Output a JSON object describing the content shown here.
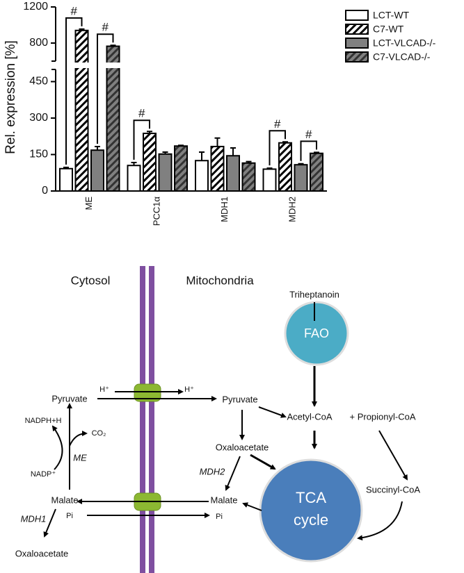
{
  "chart_data": {
    "type": "bar",
    "y_label": "Rel. expression [%]",
    "categories": [
      "ME",
      "PCC1α",
      "MDH1",
      "MDH2"
    ],
    "series": [
      {
        "name": "LCT-WT",
        "color": "#ffffff",
        "hatch": false,
        "values": [
          92,
          105,
          125,
          90
        ],
        "errors": [
          5,
          12,
          35,
          4
        ]
      },
      {
        "name": "C7-WT",
        "color": "#ffffff",
        "hatch": true,
        "values": [
          940,
          237,
          183,
          198
        ],
        "errors": [
          15,
          8,
          35,
          4
        ]
      },
      {
        "name": "LCT-VLCAD-/-",
        "color": "#808080",
        "hatch": false,
        "values": [
          168,
          152,
          145,
          108
        ],
        "errors": [
          15,
          8,
          32,
          4
        ]
      },
      {
        "name": "C7-VLCAD-/-",
        "color": "#808080",
        "hatch": true,
        "values": [
          765,
          185,
          115,
          155
        ],
        "errors": [
          10,
          3,
          6,
          4
        ]
      }
    ],
    "ylim": [
      0,
      1200
    ],
    "axis_break": [
      500,
      600
    ],
    "yticks": [
      0,
      150,
      300,
      450,
      800,
      1200
    ],
    "legend": "top-right",
    "significance": [
      {
        "category": "ME",
        "series": [
          "LCT-WT",
          "C7-WT"
        ],
        "text": "#"
      },
      {
        "category": "ME",
        "series": [
          "LCT-VLCAD-/-",
          "C7-VLCAD-/-"
        ],
        "text": "#"
      },
      {
        "category": "PCC1α",
        "series": [
          "LCT-WT",
          "C7-WT"
        ],
        "text": "#"
      },
      {
        "category": "MDH2",
        "series": [
          "LCT-WT",
          "C7-WT"
        ],
        "text": "#"
      },
      {
        "category": "MDH2",
        "series": [
          "LCT-VLCAD-/-",
          "C7-VLCAD-/-"
        ],
        "text": "#"
      }
    ]
  },
  "diagram": {
    "cytosol": "Cytosol",
    "mitochondria": "Mitochondria",
    "triheptanoin": "Triheptanoin",
    "fao": "FAO",
    "h_in": "H⁺",
    "h_out": "H⁺",
    "pyruvate_c": "Pyruvate",
    "pyruvate_m": "Pyruvate",
    "acetyl": "Acetyl-CoA",
    "propionyl": "+ Propionyl-CoA",
    "oaa_m": "Oxaloacetate",
    "mdh2": "MDH2",
    "nadph": "NADPH+H",
    "co2": "CO₂",
    "nadp": "NADP⁺",
    "me": "ME",
    "malate_c": "Malate",
    "pi_c": "Pi",
    "malate_m": "Malate",
    "pi_m": "Pi",
    "mdh1": "MDH1",
    "oaa_c": "Oxaloacetate",
    "tca1": "TCA",
    "tca2": "cycle",
    "succinyl": "Succinyl-CoA"
  }
}
